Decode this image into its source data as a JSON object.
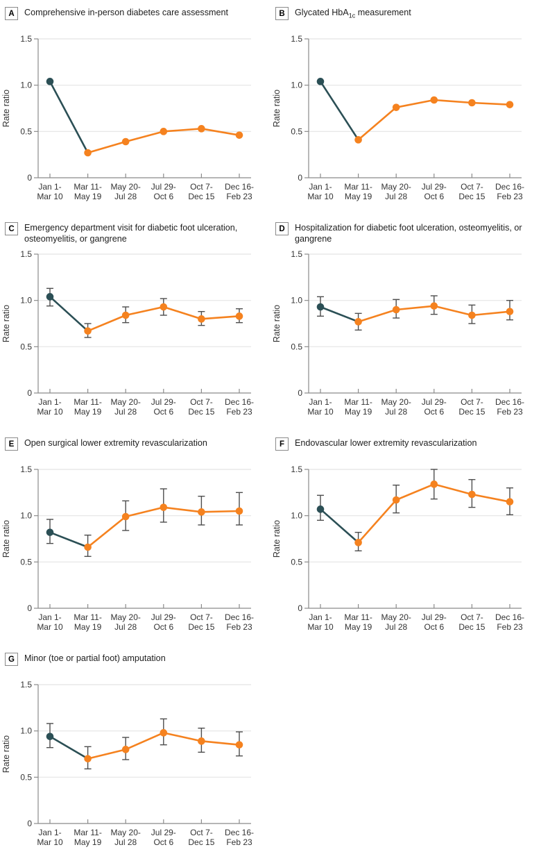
{
  "figure": {
    "y_axis_label": "Rate ratio",
    "y_tick_labels": [
      "0",
      "0.5",
      "1.0",
      "1.5"
    ],
    "colors": {
      "teal": "#2B4F55",
      "orange": "#F5821F",
      "error_bar": "#4D4D4D",
      "gridline": "#E4E4E4",
      "axis": "#8A8A8A",
      "text": "#333333"
    }
  },
  "chart_data": [
    {
      "type": "line",
      "panel_label": "A",
      "title_prefix": "Comprehensive in-person diabetes care assessment",
      "title_sub": "",
      "title_suffix": "",
      "ylabel": "Rate ratio",
      "ylim": [
        0,
        1.5
      ],
      "y_ticks": [
        0,
        0.5,
        1.0,
        1.5
      ],
      "categories": [
        "Jan 1-\nMar 10",
        "Mar 11-\nMay 19",
        "May 20-\nJul 28",
        "Jul 29-\nOct 6",
        "Oct 7-\nDec 15",
        "Dec 16-\nFeb 23"
      ],
      "values": [
        1.04,
        0.27,
        0.39,
        0.5,
        0.53,
        0.46
      ],
      "ci_low": null,
      "ci_high": null
    },
    {
      "type": "line",
      "panel_label": "B",
      "title_prefix": "Glycated HbA",
      "title_sub": "1c",
      "title_suffix": " measurement",
      "ylabel": "Rate ratio",
      "ylim": [
        0,
        1.5
      ],
      "y_ticks": [
        0,
        0.5,
        1.0,
        1.5
      ],
      "categories": [
        "Jan 1-\nMar 10",
        "Mar 11-\nMay 19",
        "May 20-\nJul 28",
        "Jul 29-\nOct 6",
        "Oct 7-\nDec 15",
        "Dec 16-\nFeb 23"
      ],
      "values": [
        1.04,
        0.41,
        0.76,
        0.84,
        0.81,
        0.79
      ],
      "ci_low": null,
      "ci_high": null
    },
    {
      "type": "line",
      "panel_label": "C",
      "title_prefix": "Emergency department visit for diabetic foot ulceration, osteomyelitis, or gangrene",
      "title_sub": "",
      "title_suffix": "",
      "ylabel": "Rate ratio",
      "ylim": [
        0,
        1.5
      ],
      "y_ticks": [
        0,
        0.5,
        1.0,
        1.5
      ],
      "categories": [
        "Jan 1-\nMar 10",
        "Mar 11-\nMay 19",
        "May 20-\nJul 28",
        "Jul 29-\nOct 6",
        "Oct 7-\nDec 15",
        "Dec 16-\nFeb 23"
      ],
      "values": [
        1.04,
        0.67,
        0.84,
        0.93,
        0.8,
        0.83
      ],
      "ci_low": [
        0.94,
        0.6,
        0.76,
        0.84,
        0.73,
        0.76
      ],
      "ci_high": [
        1.13,
        0.75,
        0.93,
        1.02,
        0.88,
        0.91
      ]
    },
    {
      "type": "line",
      "panel_label": "D",
      "title_prefix": "Hospitalization for diabetic foot ulceration, osteomyelitis, or gangrene",
      "title_sub": "",
      "title_suffix": "",
      "ylabel": "Rate ratio",
      "ylim": [
        0,
        1.5
      ],
      "y_ticks": [
        0,
        0.5,
        1.0,
        1.5
      ],
      "categories": [
        "Jan 1-\nMar 10",
        "Mar 11-\nMay 19",
        "May 20-\nJul 28",
        "Jul 29-\nOct 6",
        "Oct 7-\nDec 15",
        "Dec 16-\nFeb 23"
      ],
      "values": [
        0.93,
        0.77,
        0.9,
        0.94,
        0.84,
        0.88
      ],
      "ci_low": [
        0.83,
        0.68,
        0.81,
        0.85,
        0.75,
        0.79
      ],
      "ci_high": [
        1.04,
        0.86,
        1.01,
        1.05,
        0.95,
        1.0
      ]
    },
    {
      "type": "line",
      "panel_label": "E",
      "title_prefix": "Open surgical lower extremity revascularization",
      "title_sub": "",
      "title_suffix": "",
      "ylabel": "Rate ratio",
      "ylim": [
        0,
        1.5
      ],
      "y_ticks": [
        0,
        0.5,
        1.0,
        1.5
      ],
      "categories": [
        "Jan 1-\nMar 10",
        "Mar 11-\nMay 19",
        "May 20-\nJul 28",
        "Jul 29-\nOct 6",
        "Oct 7-\nDec 15",
        "Dec 16-\nFeb 23"
      ],
      "values": [
        0.82,
        0.66,
        0.99,
        1.09,
        1.04,
        1.05
      ],
      "ci_low": [
        0.7,
        0.56,
        0.84,
        0.93,
        0.9,
        0.9
      ],
      "ci_high": [
        0.96,
        0.79,
        1.16,
        1.29,
        1.21,
        1.25
      ]
    },
    {
      "type": "line",
      "panel_label": "F",
      "title_prefix": "Endovascular lower extremity revascularization",
      "title_sub": "",
      "title_suffix": "",
      "ylabel": "Rate ratio",
      "ylim": [
        0,
        1.5
      ],
      "y_ticks": [
        0,
        0.5,
        1.0,
        1.5
      ],
      "categories": [
        "Jan 1-\nMar 10",
        "Mar 11-\nMay 19",
        "May 20-\nJul 28",
        "Jul 29-\nOct 6",
        "Oct 7-\nDec 15",
        "Dec 16-\nFeb 23"
      ],
      "values": [
        1.07,
        0.71,
        1.17,
        1.34,
        1.23,
        1.15
      ],
      "ci_low": [
        0.95,
        0.62,
        1.03,
        1.18,
        1.09,
        1.01
      ],
      "ci_high": [
        1.22,
        0.82,
        1.33,
        1.5,
        1.39,
        1.3
      ]
    },
    {
      "type": "line",
      "panel_label": "G",
      "title_prefix": "Minor (toe or partial foot) amputation",
      "title_sub": "",
      "title_suffix": "",
      "ylabel": "Rate ratio",
      "ylim": [
        0,
        1.5
      ],
      "y_ticks": [
        0,
        0.5,
        1.0,
        1.5
      ],
      "categories": [
        "Jan 1-\nMar 10",
        "Mar 11-\nMay 19",
        "May 20-\nJul 28",
        "Jul 29-\nOct 6",
        "Oct 7-\nDec 15",
        "Dec 16-\nFeb 23"
      ],
      "values": [
        0.94,
        0.7,
        0.8,
        0.98,
        0.89,
        0.85
      ],
      "ci_low": [
        0.82,
        0.59,
        0.69,
        0.85,
        0.77,
        0.73
      ],
      "ci_high": [
        1.08,
        0.83,
        0.93,
        1.13,
        1.03,
        0.99
      ]
    }
  ]
}
